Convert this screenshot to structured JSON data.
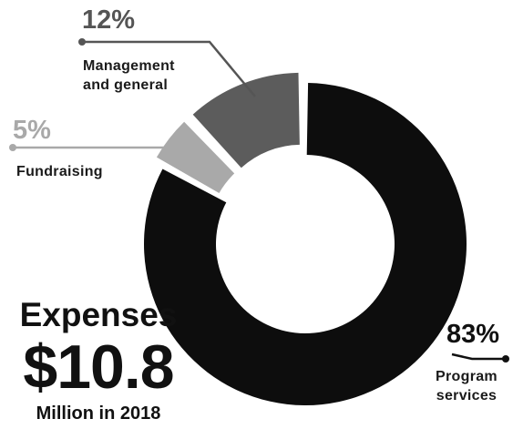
{
  "chart_data": {
    "type": "donut",
    "slices": [
      {
        "label_lines": [
          "Program",
          "services"
        ],
        "percent": "83%",
        "value": 83,
        "color": "#0d0d0d"
      },
      {
        "label_lines": [
          "Fundraising"
        ],
        "percent": "5%",
        "value": 5,
        "color": "#a9a9a9"
      },
      {
        "label_lines": [
          "Management",
          "and general"
        ],
        "percent": "12%",
        "value": 12,
        "color": "#5c5c5c"
      }
    ]
  },
  "summary": {
    "heading": "Expenses",
    "amount": "$10.8",
    "unit": "Million in 2018"
  }
}
